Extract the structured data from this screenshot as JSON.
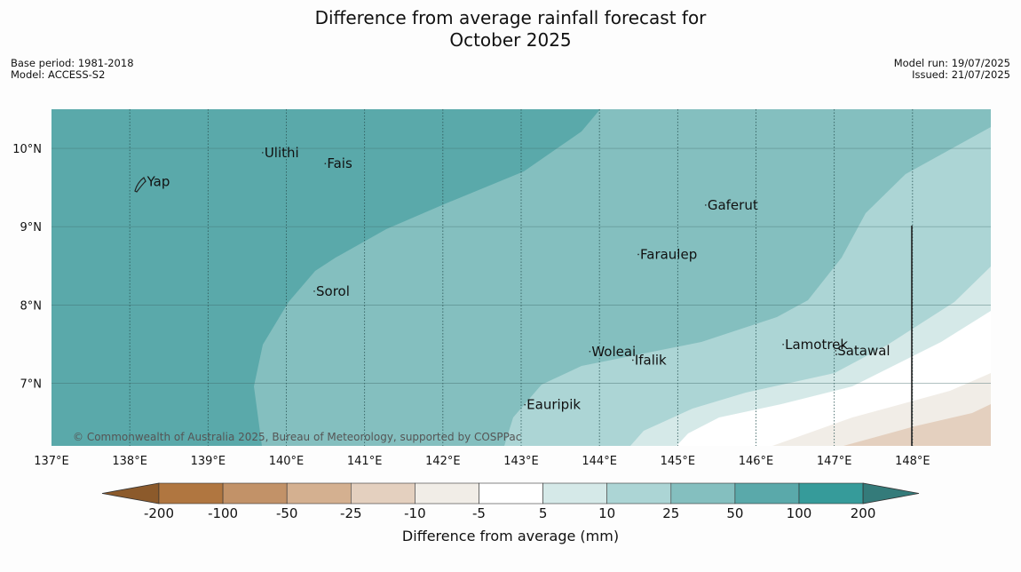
{
  "title_line1": "Difference from average rainfall forecast for",
  "title_line2": "October 2025",
  "meta_left": {
    "base_period": "Base period: 1981-2018",
    "model": "Model: ACCESS-S2"
  },
  "meta_right": {
    "model_run": "Model run: 19/07/2025",
    "issued": "Issued: 21/07/2025"
  },
  "copyright": "© Commonwealth of Australia 2025, Bureau of Meteorology, supported by COSPPac",
  "map": {
    "lon_range": [
      137,
      149
    ],
    "lat_range": [
      6.2,
      10.5
    ],
    "lon_ticks": [
      "137°E",
      "138°E",
      "139°E",
      "140°E",
      "141°E",
      "142°E",
      "143°E",
      "144°E",
      "145°E",
      "146°E",
      "147°E",
      "148°E"
    ],
    "lat_ticks": [
      "10°N",
      "9°N",
      "8°N",
      "7°N"
    ],
    "places": [
      {
        "name": "Yap",
        "lon": 138.22,
        "lat": 9.53
      },
      {
        "name": "Ulithi",
        "lon": 139.72,
        "lat": 9.9
      },
      {
        "name": "Fais",
        "lon": 140.52,
        "lat": 9.76
      },
      {
        "name": "Gaferut",
        "lon": 145.38,
        "lat": 9.23
      },
      {
        "name": "Faraulep",
        "lon": 144.52,
        "lat": 8.6
      },
      {
        "name": "Sorol",
        "lon": 140.38,
        "lat": 8.13
      },
      {
        "name": "Woleai",
        "lon": 143.9,
        "lat": 7.36
      },
      {
        "name": "Ifalik",
        "lon": 144.45,
        "lat": 7.25
      },
      {
        "name": "Lamotrek",
        "lon": 146.37,
        "lat": 7.45
      },
      {
        "name": "Satawal",
        "lon": 147.04,
        "lat": 7.37
      },
      {
        "name": "Eauripik",
        "lon": 143.07,
        "lat": 6.68
      }
    ]
  },
  "colorbar": {
    "label": "Difference from average (mm)",
    "tick_labels": [
      "-200",
      "-100",
      "-50",
      "-25",
      "-10",
      "-5",
      "5",
      "10",
      "25",
      "50",
      "100",
      "200"
    ],
    "colors": [
      "#8c5a2b",
      "#b07640",
      "#c29268",
      "#d4b090",
      "#e4d0bf",
      "#f1ede7",
      "#ffffff",
      "#d5e9e8",
      "#acd5d5",
      "#84bfbf",
      "#5aa9aa",
      "#369b9a",
      "#347b7a"
    ]
  },
  "colors": {
    "wet_strong": "#5aa9aa",
    "wet_mid": "#84bfbf",
    "wet_light": "#acd5d5",
    "wet_faint": "#d5e9e8",
    "neutral": "#ffffff",
    "dry_faint": "#f1ede7",
    "dry_light": "#e4d0bf"
  }
}
